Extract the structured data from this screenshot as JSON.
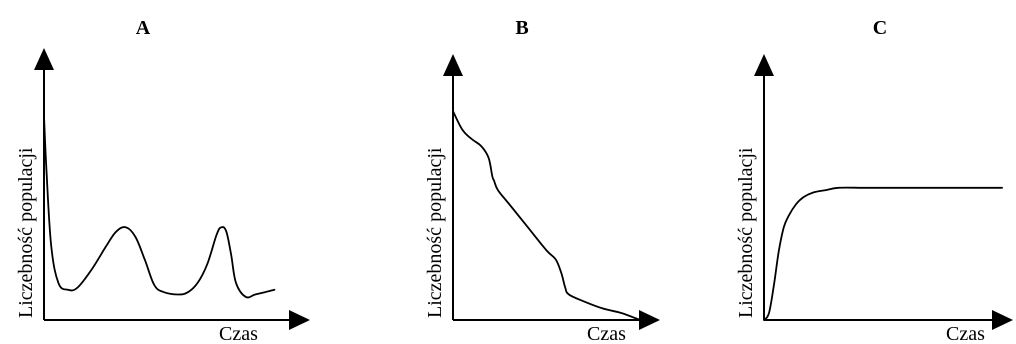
{
  "chart_data": [
    {
      "type": "line",
      "title": "A",
      "xlabel": "Czas",
      "ylabel": "Liczebność populacji",
      "xlim": [
        0,
        100
      ],
      "ylim": [
        0,
        100
      ],
      "grid": false,
      "x": [
        0,
        1,
        3,
        6,
        10,
        14,
        20,
        26,
        30,
        34,
        38,
        42,
        46,
        50,
        56,
        60,
        64,
        68,
        72,
        74,
        76,
        78,
        80,
        84,
        88,
        92,
        96
      ],
      "values": [
        88,
        65,
        32,
        16,
        13,
        14,
        22,
        32,
        38,
        40,
        36,
        26,
        15,
        12,
        11,
        12,
        16,
        24,
        37,
        40,
        38,
        28,
        16,
        10,
        11,
        12,
        13
      ]
    },
    {
      "type": "line",
      "title": "B",
      "xlabel": "Czas",
      "ylabel": "Liczebność populacji",
      "xlim": [
        0,
        100
      ],
      "ylim": [
        0,
        100
      ],
      "grid": false,
      "x": [
        0,
        5,
        10,
        15,
        19,
        21,
        22,
        24,
        30,
        40,
        50,
        55,
        58,
        60,
        62,
        70,
        80,
        90,
        100
      ],
      "values": [
        90,
        82,
        78,
        75,
        70,
        62,
        60,
        56,
        50,
        40,
        30,
        26,
        20,
        14,
        11,
        8,
        5,
        3,
        0
      ]
    },
    {
      "type": "line",
      "title": "C",
      "xlabel": "Czas",
      "ylabel": "Liczebność populacji",
      "xlim": [
        0,
        100
      ],
      "ylim": [
        0,
        100
      ],
      "grid": false,
      "x": [
        0,
        2,
        4,
        6,
        8,
        10,
        13,
        16,
        20,
        25,
        30,
        40,
        50,
        60,
        70,
        80,
        90,
        96
      ],
      "values": [
        0,
        3,
        15,
        30,
        40,
        45,
        50,
        53,
        55,
        56,
        57,
        57,
        57,
        57,
        57,
        57,
        57,
        57
      ]
    }
  ]
}
